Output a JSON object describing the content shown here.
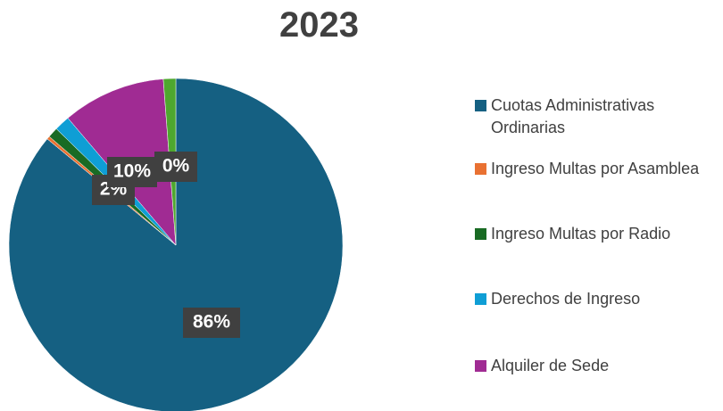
{
  "chart_data": {
    "type": "pie",
    "title": "2023",
    "categories": [
      "Cuotas Administrativas Ordinarias",
      "Ingreso Multas por Asamblea",
      "Ingreso Multas por Radio",
      "Derechos de Ingreso",
      "Alquiler de Sede",
      null
    ],
    "values": [
      86,
      0.3,
      1,
      1.5,
      10,
      1.2
    ],
    "value_labels": [
      "86%",
      "0%",
      null,
      "2%",
      "10%",
      null
    ],
    "colors": [
      "#156082",
      "#e97132",
      "#196b24",
      "#0f9ed5",
      "#a02b93",
      "#4ea72e"
    ]
  }
}
